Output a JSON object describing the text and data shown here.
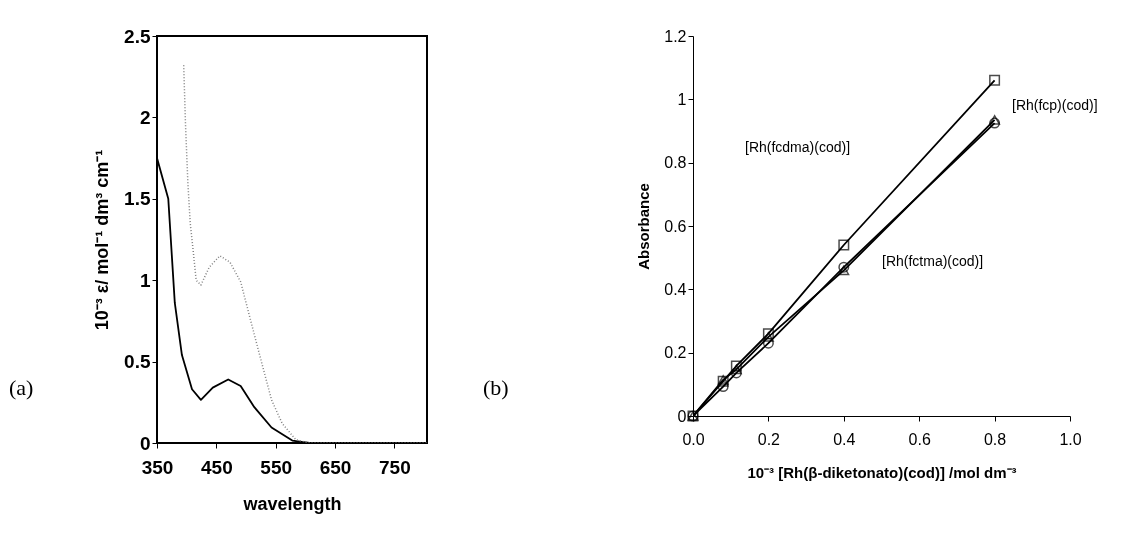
{
  "chart_data": [
    {
      "type": "line",
      "xlabel": "wavelength",
      "ylabel": "10⁻³ ε/ mol⁻¹ dm³ cm⁻¹",
      "xlim": [
        350,
        805
      ],
      "xticks": [
        350,
        450,
        550,
        650,
        750
      ],
      "ylim": [
        0,
        2.5
      ],
      "yticks": [
        0,
        0.5,
        1,
        1.5,
        2,
        2.5
      ],
      "grid": false,
      "marker": "none",
      "annotations": [
        "(a)"
      ],
      "series": [
        {
          "color": "#000000",
          "line_style": "solid",
          "x": [
            350,
            369,
            380,
            392,
            409,
            424,
            444,
            470,
            491,
            514,
            543,
            578,
            607,
            700,
            805
          ],
          "values": [
            1.75,
            1.5,
            0.86,
            0.54,
            0.33,
            0.265,
            0.34,
            0.39,
            0.35,
            0.22,
            0.095,
            0.015,
            0,
            0,
            0
          ]
        },
        {
          "color": "#808080",
          "line_style": "dotted",
          "x": [
            395,
            398,
            402,
            406,
            411,
            416,
            424,
            438,
            456,
            473,
            491,
            508,
            523,
            543,
            561,
            584,
            607,
            700,
            805
          ],
          "values": [
            2.32,
            1.96,
            1.6,
            1.35,
            1.18,
            1.0,
            0.97,
            1.08,
            1.15,
            1.11,
            0.99,
            0.75,
            0.54,
            0.265,
            0.12,
            0.02,
            0,
            0,
            0
          ]
        }
      ]
    },
    {
      "type": "line",
      "xlabel": "10⁻³ [Rh(β-diketonato)(cod)] /mol dm⁻³",
      "ylabel": "Absorbance",
      "xlim": [
        0,
        1
      ],
      "xticks": [
        {
          "value": 0,
          "label": "0.0"
        },
        0.2,
        0.4,
        0.6,
        0.8,
        {
          "value": 1,
          "label": "1.0"
        }
      ],
      "ylim": [
        0,
        1.2
      ],
      "yticks": [
        0,
        0.2,
        0.4,
        0.6,
        0.8,
        1,
        1.2
      ],
      "grid": false,
      "annotations": [
        "(b)",
        "[Rh(fcdma)(cod)]",
        "[Rh(fcp)(cod)]",
        "[Rh(fctma)(cod)]"
      ],
      "series": [
        {
          "color": "#000000",
          "marker": "square",
          "x": [
            0,
            0.08,
            0.115,
            0.2,
            0.4,
            0.8
          ],
          "values": [
            0,
            0.11,
            0.158,
            0.26,
            0.54,
            1.06
          ]
        },
        {
          "color": "#000000",
          "marker": "triangle",
          "x": [
            0,
            0.08,
            0.115,
            0.2,
            0.4,
            0.8
          ],
          "values": [
            0,
            0.114,
            0.147,
            0.25,
            0.46,
            0.935
          ]
        },
        {
          "color": "#000000",
          "marker": "circle",
          "x": [
            0,
            0.08,
            0.115,
            0.2,
            0.4,
            0.8
          ],
          "values": [
            0,
            0.093,
            0.136,
            0.23,
            0.47,
            0.925
          ]
        }
      ]
    }
  ]
}
